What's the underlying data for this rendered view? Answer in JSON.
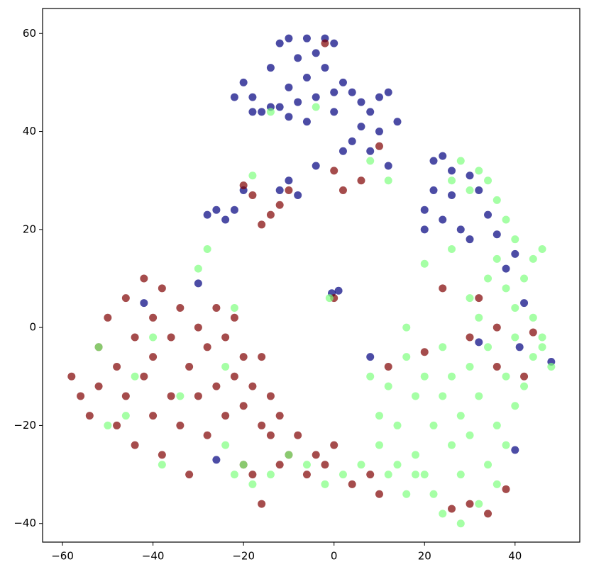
{
  "chart_data": {
    "type": "scatter",
    "xlim": [
      -64.4,
      54.3
    ],
    "ylim": [
      -43.8,
      65.1
    ],
    "xticks": [
      {
        "value": -60,
        "label": "−60"
      },
      {
        "value": -40,
        "label": "−40"
      },
      {
        "value": -20,
        "label": "−20"
      },
      0,
      20,
      40
    ],
    "yticks": [
      {
        "value": -40,
        "label": "−40"
      },
      {
        "value": -20,
        "label": "−20"
      },
      0,
      20,
      40,
      60
    ],
    "series": [
      {
        "color": "#00007f",
        "x": [
          -12,
          -10,
          -6,
          -2,
          0,
          -4,
          -8,
          -14,
          -20,
          -22,
          -18,
          -16,
          -12,
          -8,
          -4,
          0,
          2,
          -10,
          -6,
          -2,
          4,
          6,
          8,
          10,
          12,
          6,
          10,
          4,
          2,
          -6,
          -10,
          -14,
          -18,
          0,
          14,
          8,
          12,
          -4,
          -10,
          -12,
          -8,
          -26,
          -24,
          -22,
          -28,
          -20,
          22,
          24,
          26,
          30,
          32,
          22,
          20,
          24,
          28,
          30,
          20,
          34,
          36,
          26,
          -0.5,
          1,
          -42,
          -30,
          -26,
          40,
          8,
          48,
          32,
          41,
          38,
          40,
          42
        ],
        "values": [
          58,
          59,
          59,
          59,
          58,
          56,
          55,
          53,
          50,
          47,
          47,
          44,
          45,
          46,
          47,
          48,
          50,
          49,
          51,
          53,
          48,
          46,
          44,
          47,
          48,
          41,
          40,
          38,
          36,
          42,
          43,
          45,
          44,
          44,
          42,
          36,
          33,
          33,
          30,
          28,
          27,
          24,
          22,
          24,
          23,
          28,
          34,
          35,
          32,
          31,
          28,
          28,
          24,
          22,
          20,
          18,
          20,
          23,
          19,
          27,
          7,
          7.5,
          5,
          9,
          -27,
          -25,
          -6,
          -7,
          -3,
          -4,
          12,
          15,
          5
        ]
      },
      {
        "color": "#7f0000",
        "x": [
          -58,
          -56,
          -54,
          -52,
          -52,
          -50,
          -48,
          -48,
          -46,
          -46,
          -44,
          -44,
          -42,
          -42,
          -40,
          -40,
          -40,
          -38,
          -38,
          -36,
          -36,
          -34,
          -34,
          -32,
          -32,
          -30,
          -30,
          -28,
          -28,
          -26,
          -26,
          -24,
          -24,
          -22,
          -22,
          -20,
          -20,
          -18,
          -16,
          -16,
          -14,
          -14,
          -12,
          -10,
          -8,
          -6,
          -4,
          -2,
          0,
          4,
          8,
          10,
          -16,
          -18,
          -20,
          -12,
          -20,
          -18,
          -14,
          -16,
          -12,
          -10,
          0,
          6,
          10,
          -2,
          2,
          26,
          34,
          30,
          36,
          42,
          20,
          12,
          30,
          36,
          24,
          32,
          44,
          0,
          38
        ],
        "values": [
          -10,
          -14,
          -18,
          -12,
          -4,
          2,
          -8,
          -20,
          -14,
          6,
          -2,
          -24,
          10,
          -10,
          -18,
          -6,
          2,
          -26,
          8,
          -14,
          -2,
          4,
          -20,
          -30,
          -8,
          0,
          -14,
          -22,
          -4,
          4,
          -12,
          -18,
          -2,
          -10,
          2,
          -16,
          -6,
          -12,
          -20,
          -6,
          -22,
          -14,
          -18,
          -26,
          -22,
          -30,
          -26,
          -28,
          -24,
          -32,
          -30,
          -34,
          -36,
          -30,
          -28,
          -28,
          29,
          27,
          23,
          21,
          25,
          28,
          32,
          30,
          37,
          58,
          28,
          -37,
          -38,
          -36,
          -8,
          -10,
          -5,
          -8,
          -2,
          0,
          8,
          6,
          -1,
          6,
          -33
        ]
      },
      {
        "color": "#7fff7f",
        "x": [
          16,
          18,
          20,
          22,
          24,
          24,
          26,
          26,
          28,
          28,
          30,
          30,
          32,
          32,
          34,
          34,
          36,
          36,
          38,
          38,
          40,
          40,
          42,
          44,
          46,
          48,
          40,
          42,
          44,
          46,
          40,
          38,
          36,
          34,
          32,
          30,
          28,
          26,
          36,
          38,
          34,
          32,
          30,
          28,
          24,
          22,
          20,
          18,
          14,
          10,
          6,
          2,
          -2,
          -6,
          -10,
          -14,
          -18,
          -20,
          -22,
          14,
          12,
          8,
          10,
          18,
          16,
          12,
          44,
          46,
          -52,
          -46,
          -40,
          -34,
          -28,
          -30,
          -24,
          -22,
          -38,
          -4,
          -14,
          -18,
          8,
          12,
          20,
          -1,
          16,
          26,
          -50,
          -44,
          -24
        ],
        "values": [
          -6,
          -14,
          -10,
          -20,
          -4,
          -14,
          -24,
          -10,
          -18,
          -30,
          -8,
          -22,
          -36,
          -14,
          -28,
          -4,
          -20,
          -32,
          -10,
          -24,
          -16,
          -2,
          -12,
          -6,
          -4,
          -8,
          4,
          10,
          14,
          16,
          18,
          22,
          26,
          30,
          32,
          28,
          34,
          30,
          14,
          8,
          10,
          2,
          6,
          -40,
          -38,
          -34,
          -30,
          -26,
          -28,
          -24,
          -28,
          -30,
          -32,
          -28,
          -26,
          -30,
          -32,
          -28,
          -30,
          -20,
          -12,
          -10,
          -18,
          -30,
          -34,
          -30,
          2,
          -2,
          -4,
          -18,
          -2,
          -14,
          16,
          12,
          -24,
          4,
          -28,
          45,
          44,
          31,
          34,
          30,
          13,
          6,
          0,
          16,
          -20,
          -10,
          -8
        ]
      }
    ]
  }
}
